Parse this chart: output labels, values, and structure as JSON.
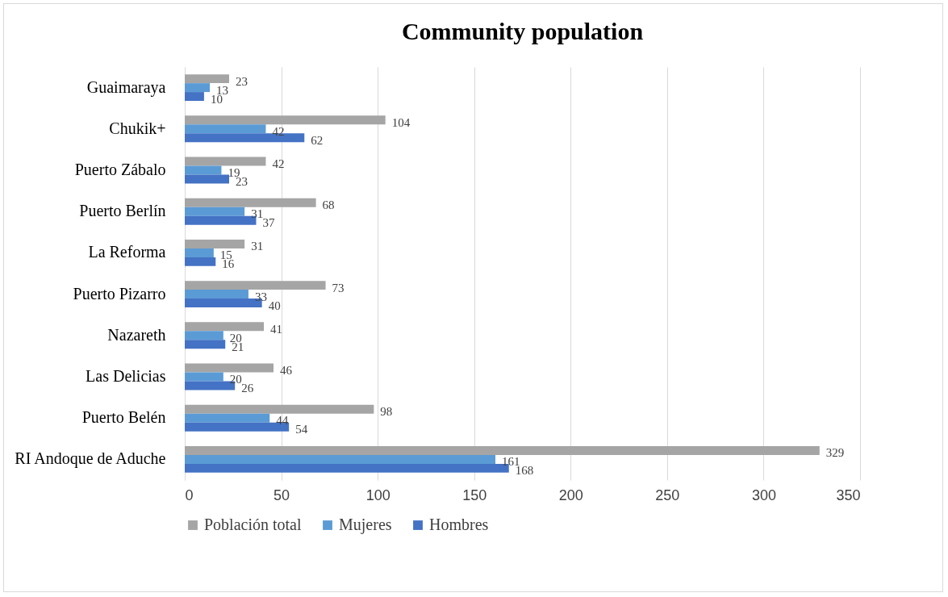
{
  "chart_data": {
    "type": "bar",
    "orientation": "horizontal",
    "title": "Community population",
    "categories": [
      "Guaimaraya",
      "Chukik+",
      "Puerto Zábalo",
      "Puerto Berlín",
      "La Reforma",
      "Puerto Pizarro",
      "Nazareth",
      "Las Delicias",
      "Puerto Belén",
      "RI Andoque de Aduche"
    ],
    "series": [
      {
        "name": "Población total",
        "color": "#a5a5a5",
        "values": [
          23,
          104,
          42,
          68,
          31,
          73,
          41,
          46,
          98,
          329
        ]
      },
      {
        "name": "Mujeres",
        "color": "#5b9bd5",
        "values": [
          13,
          42,
          19,
          31,
          15,
          33,
          20,
          20,
          44,
          161
        ]
      },
      {
        "name": "Hombres",
        "color": "#4472c4",
        "values": [
          10,
          62,
          23,
          37,
          16,
          40,
          21,
          26,
          54,
          168
        ]
      }
    ],
    "xlim": [
      0,
      350
    ],
    "xticks": [
      0,
      50,
      100,
      150,
      200,
      250,
      300,
      350
    ],
    "grid": "x",
    "legend": "bottom",
    "data_labels": true
  }
}
